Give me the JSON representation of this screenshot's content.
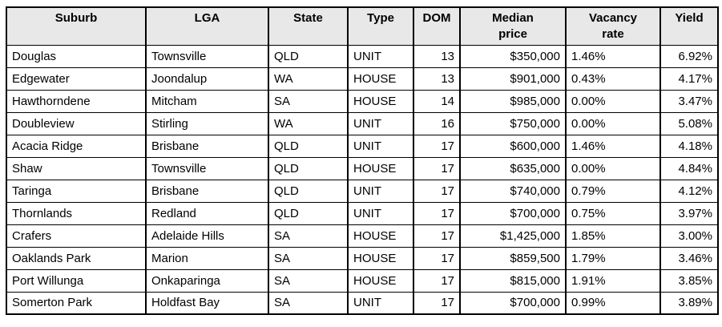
{
  "table": {
    "columns": [
      "Suburb",
      "LGA",
      "State",
      "Type",
      "DOM",
      "Median\nprice",
      "Vacancy\nrate",
      "Yield"
    ],
    "rows": [
      [
        "Douglas",
        "Townsville",
        "QLD",
        "UNIT",
        "13",
        "$350,000",
        "1.46%",
        "6.92%"
      ],
      [
        "Edgewater",
        "Joondalup",
        "WA",
        "HOUSE",
        "13",
        "$901,000",
        "0.43%",
        "4.17%"
      ],
      [
        "Hawthorndene",
        "Mitcham",
        "SA",
        "HOUSE",
        "14",
        "$985,000",
        "0.00%",
        "3.47%"
      ],
      [
        "Doubleview",
        "Stirling",
        "WA",
        "UNIT",
        "16",
        "$750,000",
        "0.00%",
        "5.08%"
      ],
      [
        "Acacia Ridge",
        "Brisbane",
        "QLD",
        "UNIT",
        "17",
        "$600,000",
        "1.46%",
        "4.18%"
      ],
      [
        "Shaw",
        "Townsville",
        "QLD",
        "HOUSE",
        "17",
        "$635,000",
        "0.00%",
        "4.84%"
      ],
      [
        "Taringa",
        "Brisbane",
        "QLD",
        "UNIT",
        "17",
        "$740,000",
        "0.79%",
        "4.12%"
      ],
      [
        "Thornlands",
        "Redland",
        "QLD",
        "UNIT",
        "17",
        "$700,000",
        "0.75%",
        "3.97%"
      ],
      [
        "Crafers",
        "Adelaide Hills",
        "SA",
        "HOUSE",
        "17",
        "$1,425,000",
        "1.85%",
        "3.00%"
      ],
      [
        "Oaklands Park",
        "Marion",
        "SA",
        "HOUSE",
        "17",
        "$859,500",
        "1.79%",
        "3.46%"
      ],
      [
        "Port Willunga",
        "Onkaparinga",
        "SA",
        "HOUSE",
        "17",
        "$815,000",
        "1.91%",
        "3.85%"
      ],
      [
        "Somerton Park",
        "Holdfast Bay",
        "SA",
        "UNIT",
        "17",
        "$700,000",
        "0.99%",
        "3.89%"
      ]
    ]
  },
  "chart_data": {
    "type": "table",
    "columns": [
      "Suburb",
      "LGA",
      "State",
      "Type",
      "DOM",
      "Median price",
      "Vacancy rate",
      "Yield"
    ],
    "rows": [
      [
        "Douglas",
        "Townsville",
        "QLD",
        "UNIT",
        13,
        "$350,000",
        "1.46%",
        "6.92%"
      ],
      [
        "Edgewater",
        "Joondalup",
        "WA",
        "HOUSE",
        13,
        "$901,000",
        "0.43%",
        "4.17%"
      ],
      [
        "Hawthorndene",
        "Mitcham",
        "SA",
        "HOUSE",
        14,
        "$985,000",
        "0.00%",
        "3.47%"
      ],
      [
        "Doubleview",
        "Stirling",
        "WA",
        "UNIT",
        16,
        "$750,000",
        "0.00%",
        "5.08%"
      ],
      [
        "Acacia Ridge",
        "Brisbane",
        "QLD",
        "UNIT",
        17,
        "$600,000",
        "1.46%",
        "4.18%"
      ],
      [
        "Shaw",
        "Townsville",
        "QLD",
        "HOUSE",
        17,
        "$635,000",
        "0.00%",
        "4.84%"
      ],
      [
        "Taringa",
        "Brisbane",
        "QLD",
        "UNIT",
        17,
        "$740,000",
        "0.79%",
        "4.12%"
      ],
      [
        "Thornlands",
        "Redland",
        "QLD",
        "UNIT",
        17,
        "$700,000",
        "0.75%",
        "3.97%"
      ],
      [
        "Crafers",
        "Adelaide Hills",
        "SA",
        "HOUSE",
        17,
        "$1,425,000",
        "1.85%",
        "3.00%"
      ],
      [
        "Oaklands Park",
        "Marion",
        "SA",
        "HOUSE",
        17,
        "$859,500",
        "1.79%",
        "3.46%"
      ],
      [
        "Port Willunga",
        "Onkaparinga",
        "SA",
        "HOUSE",
        17,
        "$815,000",
        "1.91%",
        "3.85%"
      ],
      [
        "Somerton Park",
        "Holdfast Bay",
        "SA",
        "UNIT",
        17,
        "$700,000",
        "0.99%",
        "3.89%"
      ]
    ]
  },
  "colors": {
    "page_bg": "#ffffff",
    "header_bg": "#e8e8e8",
    "border": "#000000",
    "text": "#000000"
  }
}
